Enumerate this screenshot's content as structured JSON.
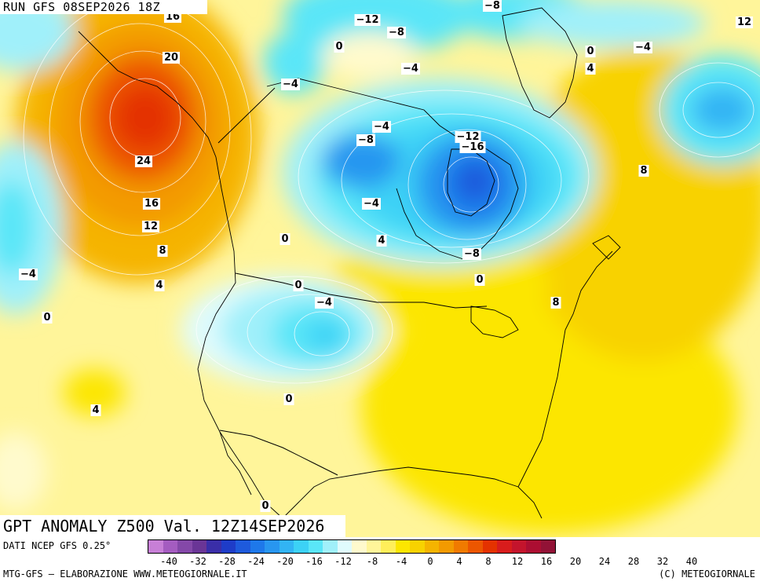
{
  "header": {
    "run_label": "RUN GFS 08SEP2026 18Z"
  },
  "title": {
    "text": "GPT ANOMALY Z500 Val. 12Z14SEP2026"
  },
  "footer": {
    "data_source": "DATI NCEP GFS 0.25°",
    "credit": "MTG-GFS — ELABORAZIONE WWW.METEOGIORNALE.IT",
    "copyright": "(C) METEOGIORNALE"
  },
  "colorbar": {
    "colors": [
      "#c77fd6",
      "#a45cc0",
      "#8448a8",
      "#6a3596",
      "#3a2ea8",
      "#1e3cc8",
      "#1e5adc",
      "#1e78ea",
      "#2896f0",
      "#32b4f4",
      "#3cd2f6",
      "#5ae6f8",
      "#a0f0fa",
      "#e0fbfd",
      "#fffacd",
      "#fff59a",
      "#ffee5a",
      "#fce600",
      "#f8d200",
      "#f5b400",
      "#f39a00",
      "#f07a00",
      "#ec5600",
      "#e43200",
      "#d81c1c",
      "#c4142c",
      "#ac0e32",
      "#921236"
    ],
    "tick_labels": [
      "-40",
      "-32",
      "-28",
      "-24",
      "-20",
      "-16",
      "-12",
      "-8",
      "-4",
      "0",
      "4",
      "8",
      "12",
      "16",
      "20",
      "24",
      "28",
      "32",
      "40"
    ]
  },
  "map_labels": [
    {
      "text": "16"
    },
    {
      "text": "20"
    },
    {
      "text": "24"
    },
    {
      "text": "16"
    },
    {
      "text": "12"
    },
    {
      "text": "8"
    },
    {
      "text": "4"
    },
    {
      "text": "-4"
    },
    {
      "text": "0"
    },
    {
      "text": "4"
    },
    {
      "text": "-12"
    },
    {
      "text": "-8"
    },
    {
      "text": "-8"
    },
    {
      "text": "0"
    },
    {
      "text": "-4"
    },
    {
      "text": "-4"
    },
    {
      "text": "-4"
    },
    {
      "text": "-8"
    },
    {
      "text": "-12"
    },
    {
      "text": "-16"
    },
    {
      "text": "-4"
    },
    {
      "text": "4"
    },
    {
      "text": "0"
    },
    {
      "text": "-8"
    },
    {
      "text": "0"
    },
    {
      "text": "0"
    },
    {
      "text": "-4"
    },
    {
      "text": "0"
    },
    {
      "text": "8"
    },
    {
      "text": "0"
    },
    {
      "text": "4"
    },
    {
      "text": "-4"
    },
    {
      "text": "12"
    },
    {
      "text": "8"
    },
    {
      "text": "0"
    }
  ]
}
